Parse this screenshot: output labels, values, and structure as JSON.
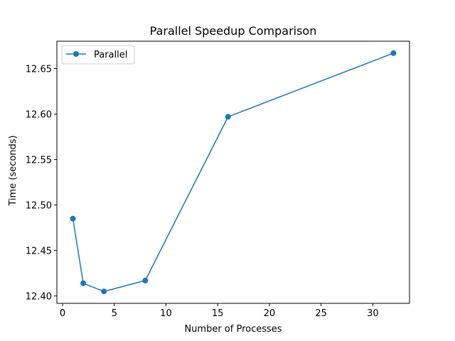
{
  "chart_data": {
    "type": "line",
    "title": "Parallel Speedup Comparison",
    "xlabel": "Number of Processes",
    "ylabel": "Time (seconds)",
    "x": [
      1,
      2,
      4,
      8,
      16,
      32
    ],
    "series": [
      {
        "name": "Parallel",
        "values": [
          12.485,
          12.414,
          12.405,
          12.417,
          12.597,
          12.667
        ],
        "color": "#1f77b4",
        "marker": "circle"
      }
    ],
    "xlim": [
      -0.55,
      33.55
    ],
    "ylim": [
      12.3919,
      12.6801
    ],
    "xticks": [
      0,
      5,
      10,
      15,
      20,
      25,
      30
    ],
    "xtick_labels": [
      "0",
      "5",
      "10",
      "15",
      "20",
      "25",
      "30"
    ],
    "yticks": [
      12.4,
      12.45,
      12.5,
      12.55,
      12.6,
      12.65
    ],
    "ytick_labels": [
      "12.40",
      "12.45",
      "12.50",
      "12.55",
      "12.60",
      "12.65"
    ],
    "grid": false,
    "legend_position": "top-left"
  }
}
